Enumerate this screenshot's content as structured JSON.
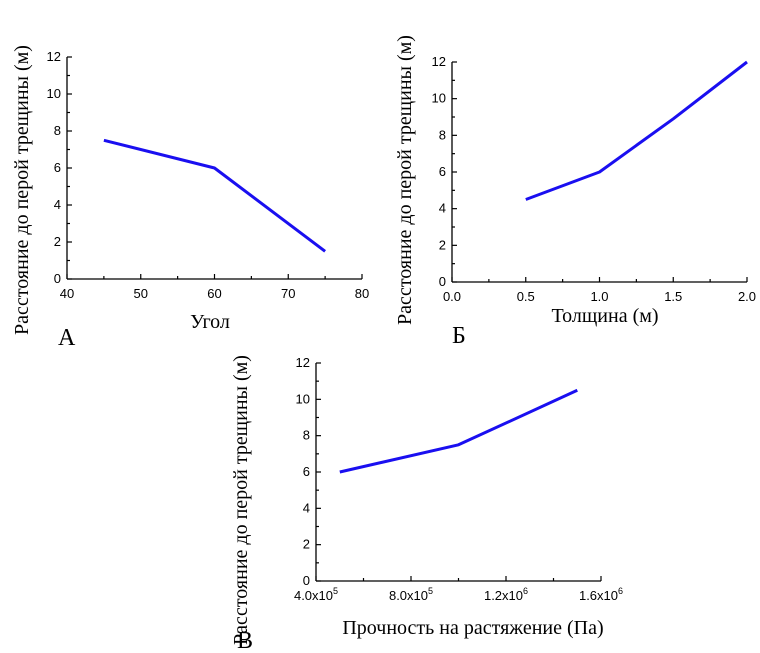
{
  "chart_data": [
    {
      "type": "line",
      "panel_label": "А",
      "xlabel": "Угол",
      "ylabel": "Расстояние до перой трещины (м)",
      "xlim": [
        40,
        80
      ],
      "ylim": [
        0,
        12
      ],
      "xticks": [
        "40",
        "50",
        "60",
        "70",
        "80"
      ],
      "yticks": [
        "0",
        "2",
        "4",
        "6",
        "8",
        "10",
        "12"
      ],
      "series": [
        {
          "x": [
            45,
            60,
            75
          ],
          "y": [
            7.5,
            6.0,
            1.5
          ]
        }
      ],
      "color": "#1a0ff0"
    },
    {
      "type": "line",
      "panel_label": "Б",
      "xlabel": "Толщина (м)",
      "ylabel": "Расстояние до перой трещины (м)",
      "xlim": [
        0,
        2
      ],
      "ylim": [
        0,
        12
      ],
      "xticks": [
        "0.0",
        "0.5",
        "1.0",
        "1.5",
        "2.0"
      ],
      "yticks": [
        "0",
        "2",
        "4",
        "6",
        "8",
        "10",
        "12"
      ],
      "series": [
        {
          "x": [
            0.5,
            1.0,
            1.5,
            2.0
          ],
          "y": [
            4.5,
            6.0,
            8.9,
            12.0
          ]
        }
      ],
      "color": "#1a0ff0"
    },
    {
      "type": "line",
      "panel_label": "В",
      "xlabel": "Прочность на растяжение (Па)",
      "ylabel": "Расстояние до перой трещины (м)",
      "xlim": [
        400000,
        1600000
      ],
      "ylim": [
        0,
        12
      ],
      "xticks": [
        {
          "base": "4.0x10",
          "exp": "5"
        },
        {
          "base": "8.0x10",
          "exp": "5"
        },
        {
          "base": "1.2x10",
          "exp": "6"
        },
        {
          "base": "1.6x10",
          "exp": "6"
        }
      ],
      "yticks": [
        "0",
        "2",
        "4",
        "6",
        "8",
        "10",
        "12"
      ],
      "series": [
        {
          "x": [
            500000,
            1000000,
            1500000
          ],
          "y": [
            6.0,
            7.5,
            10.5
          ]
        }
      ],
      "color": "#1a0ff0"
    }
  ]
}
